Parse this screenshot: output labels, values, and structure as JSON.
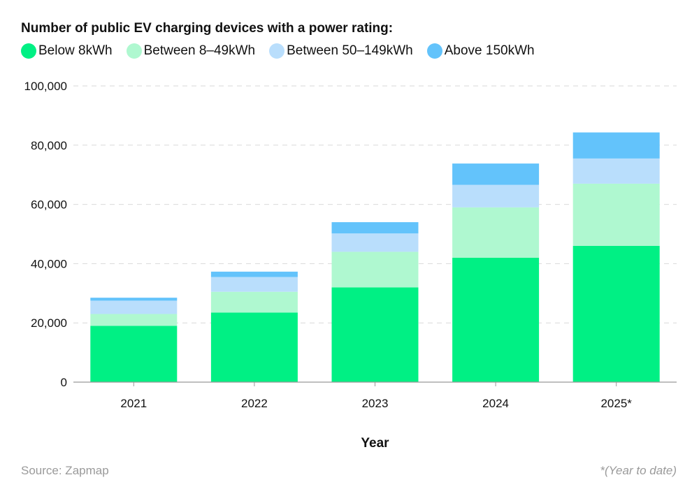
{
  "chart_data": {
    "type": "bar",
    "stacked": true,
    "title": "Number of public EV charging devices with a power rating:",
    "xlabel": "Year",
    "ylabel": "",
    "categories": [
      "2021",
      "2022",
      "2023",
      "2024",
      "2025*"
    ],
    "ylim": [
      0,
      100000
    ],
    "yticks": [
      "0",
      "20,000",
      "40,000",
      "60,000",
      "80,000",
      "100,000"
    ],
    "grid": true,
    "legend_position": "top-left",
    "series": [
      {
        "name": "Below 8kWh",
        "color": "#00F084",
        "values": [
          19000,
          23500,
          32000,
          42000,
          46000
        ]
      },
      {
        "name": "Between 8–49kWh",
        "color": "#AFF8D0",
        "values": [
          4000,
          7000,
          12000,
          17000,
          21000
        ]
      },
      {
        "name": "Between 50–149kWh",
        "color": "#B9DEFC",
        "values": [
          4500,
          5000,
          6200,
          7600,
          8500
        ]
      },
      {
        "name": "Above 150kWh",
        "color": "#63C3FB",
        "values": [
          1000,
          1800,
          3800,
          7200,
          8800
        ]
      }
    ]
  },
  "source": "Source: Zapmap",
  "footnote": "*(Year to date)"
}
